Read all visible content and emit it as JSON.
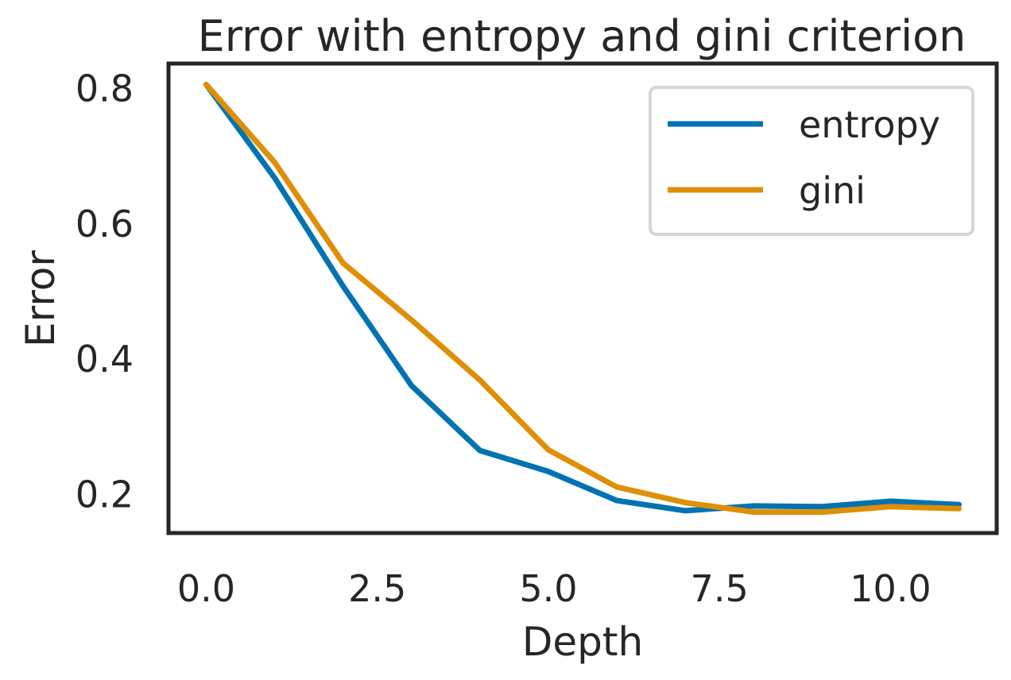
{
  "chart_data": {
    "type": "line",
    "title": "Error with entropy and gini criterion",
    "xlabel": "Depth",
    "ylabel": "Error",
    "x": [
      0,
      1,
      2,
      3,
      4,
      5,
      6,
      7,
      8,
      9,
      10,
      11
    ],
    "xticks": [
      "0.0",
      "2.5",
      "5.0",
      "7.5",
      "10.0"
    ],
    "xtick_values": [
      0,
      2.5,
      5,
      7.5,
      10
    ],
    "yticks": [
      "0.2",
      "0.4",
      "0.6",
      "0.8"
    ],
    "ytick_values": [
      0.2,
      0.4,
      0.6,
      0.8
    ],
    "xlim": [
      -0.55,
      11.55
    ],
    "ylim": [
      0.143,
      0.837
    ],
    "grid": false,
    "legend_position": "top-right",
    "series": [
      {
        "name": "entropy",
        "color": "#0173b2",
        "values": [
          0.806,
          0.668,
          0.508,
          0.361,
          0.265,
          0.234,
          0.191,
          0.176,
          0.183,
          0.182,
          0.19,
          0.185
        ]
      },
      {
        "name": "gini",
        "color": "#de8f05",
        "values": [
          0.806,
          0.691,
          0.542,
          0.458,
          0.369,
          0.266,
          0.211,
          0.188,
          0.174,
          0.174,
          0.182,
          0.179
        ]
      }
    ]
  }
}
